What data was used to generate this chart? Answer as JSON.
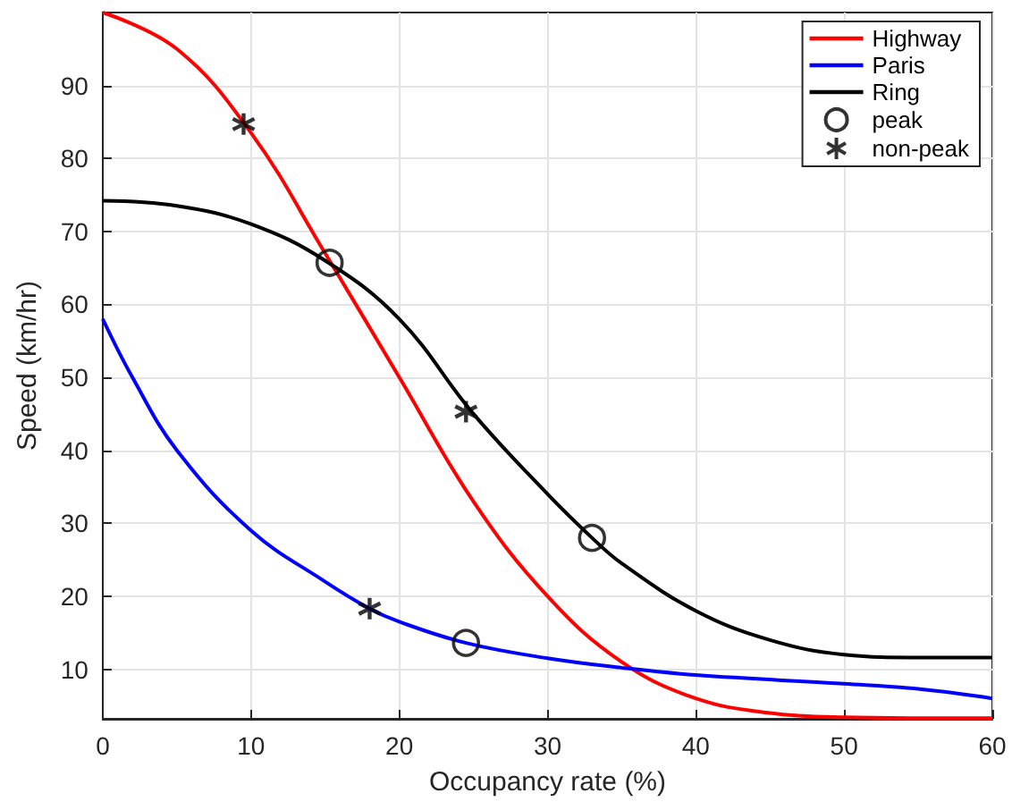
{
  "chart_data": {
    "type": "line",
    "xlabel": "Occupancy rate (%)",
    "ylabel": "Speed (km/hr)",
    "xlim": [
      0,
      60
    ],
    "xticks": [
      0,
      10,
      20,
      30,
      40,
      50,
      60
    ],
    "ylim": [
      3.2,
      100
    ],
    "yticks": [
      10,
      20,
      30,
      40,
      50,
      60,
      70,
      80,
      90
    ],
    "grid": true,
    "legend": "top right",
    "series": [
      {
        "name": "Highway",
        "color": "#ff0000",
        "marker": "none",
        "x": [
          0,
          5,
          10,
          15,
          20,
          25,
          30,
          35,
          40,
          45,
          50,
          55,
          60
        ],
        "values": [
          100,
          95,
          83.5,
          67,
          50,
          33,
          20,
          11,
          6,
          4,
          3.4,
          3.3,
          3.3
        ]
      },
      {
        "name": "Paris",
        "color": "#0000ff",
        "marker": "none",
        "x": [
          0,
          2,
          5,
          10,
          15,
          18,
          20,
          24.5,
          30,
          35,
          40,
          50,
          55,
          60
        ],
        "values": [
          58,
          50,
          40,
          29,
          22,
          18.3,
          16.5,
          13.6,
          11.5,
          10.2,
          9.2,
          8,
          7.3,
          6
        ]
      },
      {
        "name": "Ring",
        "color": "#000000",
        "marker": "none",
        "x": [
          0,
          5,
          10,
          15,
          20,
          25,
          30,
          33,
          35,
          40,
          45,
          50,
          55,
          60
        ],
        "values": [
          74.2,
          73.5,
          71,
          66,
          58,
          45,
          34,
          28,
          24.5,
          18,
          14,
          12,
          11.6,
          11.6
        ]
      },
      {
        "name": "peak",
        "type": "scatter",
        "color": "#000000",
        "marker": "circle",
        "x": [
          15.3,
          24.5,
          33
        ],
        "values": [
          65.7,
          13.6,
          28
        ]
      },
      {
        "name": "non-peak",
        "type": "scatter",
        "color": "#000000",
        "marker": "cross",
        "x": [
          9.5,
          18,
          24.5
        ],
        "values": [
          84.7,
          18.3,
          45.3
        ]
      }
    ]
  }
}
